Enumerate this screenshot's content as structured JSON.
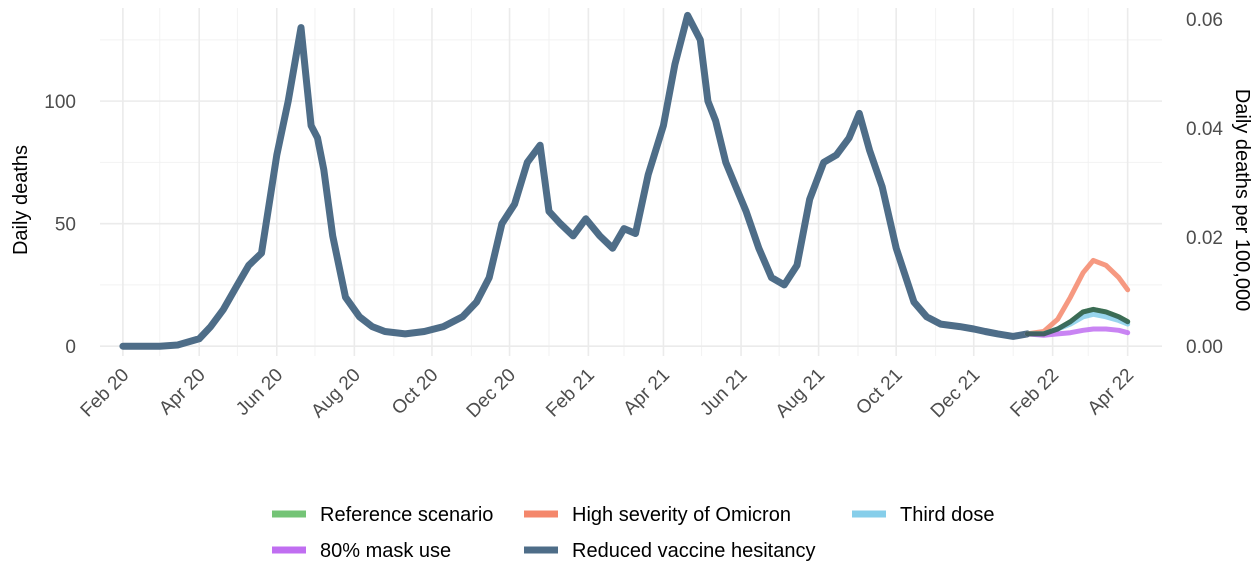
{
  "chart_data": {
    "type": "line",
    "title": "",
    "xlabel": "",
    "ylabel": "Daily deaths",
    "ylabel_right": "Daily deaths per 100,000",
    "x_range": [
      "2020-01-14",
      "2022-04-28"
    ],
    "ylim": [
      -4,
      138
    ],
    "ylim_right_per100k": [
      -0.0018,
      0.062
    ],
    "y_ticks": [
      0,
      50,
      100
    ],
    "y_right_ticks": [
      "0.00",
      "0.02",
      "0.04",
      "0.06"
    ],
    "y_right_tick_values": [
      0,
      0.02,
      0.04,
      0.06
    ],
    "x_ticks": [
      {
        "date": "2020-02-01",
        "label": "Feb 20"
      },
      {
        "date": "2020-04-01",
        "label": "Apr 20"
      },
      {
        "date": "2020-06-01",
        "label": "Jun 20"
      },
      {
        "date": "2020-08-01",
        "label": "Aug 20"
      },
      {
        "date": "2020-10-01",
        "label": "Oct 20"
      },
      {
        "date": "2020-12-01",
        "label": "Dec 20"
      },
      {
        "date": "2021-02-01",
        "label": "Feb 21"
      },
      {
        "date": "2021-04-01",
        "label": "Apr 21"
      },
      {
        "date": "2021-06-01",
        "label": "Jun 21"
      },
      {
        "date": "2021-08-01",
        "label": "Aug 21"
      },
      {
        "date": "2021-10-01",
        "label": "Oct 21"
      },
      {
        "date": "2021-12-01",
        "label": "Dec 21"
      },
      {
        "date": "2022-02-01",
        "label": "Feb 22"
      },
      {
        "date": "2022-04-01",
        "label": "Apr 22"
      }
    ],
    "grid": true,
    "legend_position": "bottom",
    "series": [
      {
        "name": "Reduced vaccine hesitancy",
        "color": "#4e6d88",
        "x": [
          "2020-02-01",
          "2020-03-01",
          "2020-03-15",
          "2020-04-01",
          "2020-04-10",
          "2020-04-20",
          "2020-05-01",
          "2020-05-10",
          "2020-05-20",
          "2020-06-01",
          "2020-06-10",
          "2020-06-20",
          "2020-06-24",
          "2020-06-28",
          "2020-07-03",
          "2020-07-08",
          "2020-07-15",
          "2020-07-25",
          "2020-08-05",
          "2020-08-15",
          "2020-08-25",
          "2020-09-10",
          "2020-09-25",
          "2020-10-10",
          "2020-10-25",
          "2020-11-05",
          "2020-11-15",
          "2020-11-25",
          "2020-12-05",
          "2020-12-15",
          "2020-12-25",
          "2021-01-01",
          "2021-01-10",
          "2021-01-20",
          "2021-01-30",
          "2021-02-10",
          "2021-02-20",
          "2021-03-01",
          "2021-03-10",
          "2021-03-20",
          "2021-04-01",
          "2021-04-10",
          "2021-04-20",
          "2021-04-30",
          "2021-05-06",
          "2021-05-12",
          "2021-05-20",
          "2021-05-28",
          "2021-06-05",
          "2021-06-15",
          "2021-06-25",
          "2021-07-05",
          "2021-07-15",
          "2021-07-25",
          "2021-08-05",
          "2021-08-15",
          "2021-08-25",
          "2021-09-02",
          "2021-09-10",
          "2021-09-20",
          "2021-10-01",
          "2021-10-15",
          "2021-10-25",
          "2021-11-05",
          "2021-11-20",
          "2021-12-01",
          "2021-12-10",
          "2021-12-20",
          "2022-01-01",
          "2022-01-12"
        ],
        "values": [
          0,
          0,
          0.5,
          3,
          8,
          15,
          25,
          33,
          38,
          78,
          100,
          130,
          110,
          90,
          85,
          72,
          45,
          20,
          12,
          8,
          6,
          5,
          6,
          8,
          12,
          18,
          28,
          50,
          58,
          75,
          82,
          55,
          50,
          45,
          52,
          45,
          40,
          48,
          46,
          70,
          90,
          115,
          135,
          125,
          100,
          92,
          75,
          65,
          55,
          40,
          28,
          25,
          33,
          60,
          75,
          78,
          85,
          95,
          80,
          65,
          40,
          18,
          12,
          9,
          8,
          7,
          6,
          5,
          4,
          5
        ]
      },
      {
        "name": "Reference scenario",
        "color": "#74c476",
        "x": [
          "2022-01-12",
          "2022-01-25",
          "2022-02-05",
          "2022-02-15",
          "2022-02-25",
          "2022-03-05",
          "2022-03-15",
          "2022-03-25",
          "2022-04-01"
        ],
        "values": [
          5,
          5,
          7,
          10,
          14,
          15,
          14,
          12,
          10
        ]
      },
      {
        "name": "High severity of Omicron",
        "color": "#f4876b",
        "x": [
          "2022-01-12",
          "2022-01-25",
          "2022-02-05",
          "2022-02-15",
          "2022-02-25",
          "2022-03-05",
          "2022-03-15",
          "2022-03-25",
          "2022-04-01"
        ],
        "values": [
          5,
          6,
          11,
          20,
          30,
          35,
          33,
          28,
          23
        ]
      },
      {
        "name": "Third dose",
        "color": "#86ceea",
        "x": [
          "2022-01-12",
          "2022-01-25",
          "2022-02-05",
          "2022-02-15",
          "2022-02-25",
          "2022-03-05",
          "2022-03-15",
          "2022-03-25",
          "2022-04-01"
        ],
        "values": [
          5,
          5,
          7,
          9,
          12,
          13,
          12,
          10.5,
          9
        ]
      },
      {
        "name": "80% mask use",
        "color": "#c06ef1",
        "x": [
          "2022-01-12",
          "2022-01-25",
          "2022-02-05",
          "2022-02-15",
          "2022-02-25",
          "2022-03-05",
          "2022-03-15",
          "2022-03-25",
          "2022-04-01"
        ],
        "values": [
          5,
          4.5,
          5,
          5.5,
          6.5,
          7,
          7,
          6.5,
          5.5
        ]
      },
      {
        "name": "Reduced vaccine hesitancy",
        "color": "#2e5a4a",
        "x": [
          "2022-01-12",
          "2022-01-25",
          "2022-02-05",
          "2022-02-15",
          "2022-02-25",
          "2022-03-05",
          "2022-03-15",
          "2022-03-25",
          "2022-04-01"
        ],
        "values": [
          5,
          5,
          7,
          10,
          14,
          15,
          14,
          12,
          10
        ]
      }
    ],
    "legend": [
      {
        "name": "Reference scenario",
        "color": "#74c476"
      },
      {
        "name": "High severity of Omicron",
        "color": "#f4876b"
      },
      {
        "name": "Third dose",
        "color": "#86ceea"
      },
      {
        "name": "80% mask use",
        "color": "#c06ef1"
      },
      {
        "name": "Reduced vaccine hesitancy",
        "color": "#4e6d88"
      }
    ]
  }
}
